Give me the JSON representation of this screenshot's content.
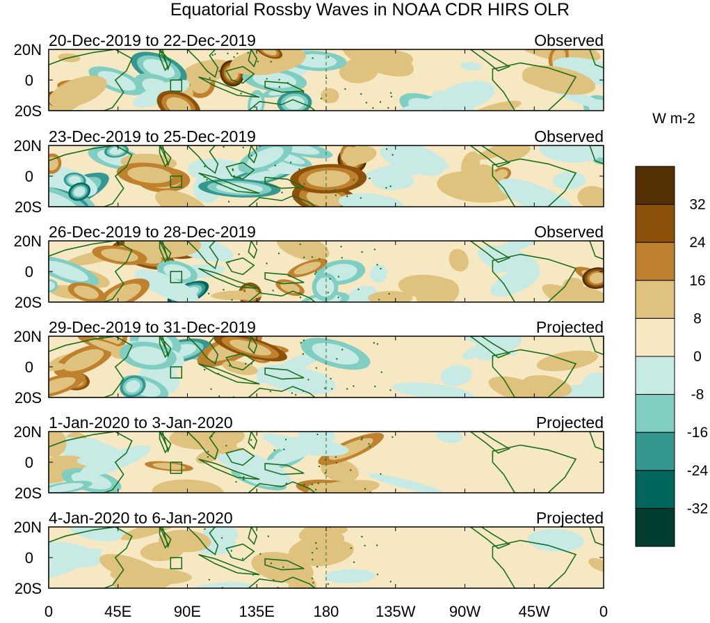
{
  "title": "Equatorial Rossby Waves in NOAA CDR HIRS OLR",
  "units": "W m-2",
  "y_tick_labels": [
    "20N",
    "0",
    "20S"
  ],
  "x_tick_labels": [
    "0",
    "45E",
    "90E",
    "135E",
    "180",
    "135W",
    "90W",
    "45W",
    "0"
  ],
  "colorbar": {
    "tick_labels": [
      "32",
      "24",
      "16",
      "8",
      "0",
      "-8",
      "-16",
      "-24",
      "-32"
    ],
    "colors": [
      "#543005",
      "#8c510a",
      "#bf812d",
      "#dfc27d",
      "#f6e8c3",
      "#c7eae5",
      "#80cdc1",
      "#35978f",
      "#01665e",
      "#003c30"
    ]
  },
  "panels": [
    {
      "dates": "20-Dec-2019 to 22-Dec-2019",
      "status": "Observed"
    },
    {
      "dates": "23-Dec-2019 to 25-Dec-2019",
      "status": "Observed"
    },
    {
      "dates": "26-Dec-2019 to 28-Dec-2019",
      "status": "Observed"
    },
    {
      "dates": "29-Dec-2019 to 31-Dec-2019",
      "status": "Projected"
    },
    {
      "dates": "1-Jan-2020 to 3-Jan-2020",
      "status": "Projected"
    },
    {
      "dates": "4-Jan-2020 to 6-Jan-2020",
      "status": "Projected"
    }
  ],
  "colors": {
    "coastline": "#1a6e1a",
    "date_line": "#3a6b3a"
  }
}
